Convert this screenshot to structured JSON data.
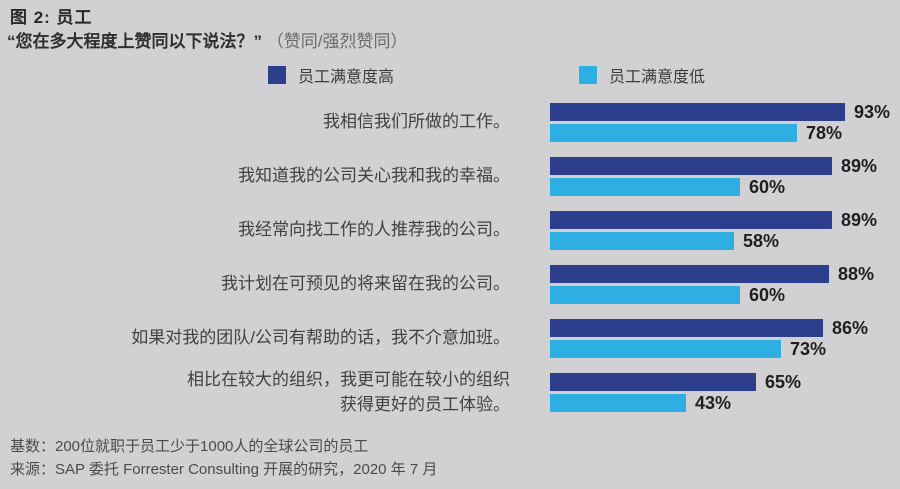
{
  "title": "图 2: 员工",
  "subtitle": {
    "question": "“您在多大程度上赞同以下说法？”",
    "qualifier": "（赞同/强烈赞同）"
  },
  "legend": {
    "high_label": "员工满意度高",
    "low_label": "员工满意度低"
  },
  "colors": {
    "background": "#d1d1d3",
    "high_bar": "#2d3e8c",
    "low_bar": "#2eafe4",
    "value_text": "#1f1f21"
  },
  "chart_data": {
    "type": "bar",
    "orientation": "horizontal",
    "unit": "%",
    "xlim": [
      0,
      100
    ],
    "legend_position": "top",
    "grid": false,
    "categories": [
      "我相信我们所做的工作。",
      "我知道我的公司关心我和我的幸福。",
      "我经常向找工作的人推荐我的公司。",
      "我计划在可预见的将来留在我的公司。",
      "如果对我的团队/公司有帮助的话，我不介意加班。",
      "相比在较大的组织，我更可能在较小的组织\n获得更好的员工体验。"
    ],
    "series": [
      {
        "name": "员工满意度高",
        "values": [
          93,
          89,
          89,
          88,
          86,
          65
        ]
      },
      {
        "name": "员工满意度低",
        "values": [
          78,
          60,
          58,
          60,
          73,
          43
        ]
      }
    ]
  },
  "footer": {
    "base": "基数：200位就职于员工少于1000人的全球公司的员工",
    "source": "来源：SAP 委托 Forrester Consulting 开展的研究，2020 年 7 月"
  }
}
